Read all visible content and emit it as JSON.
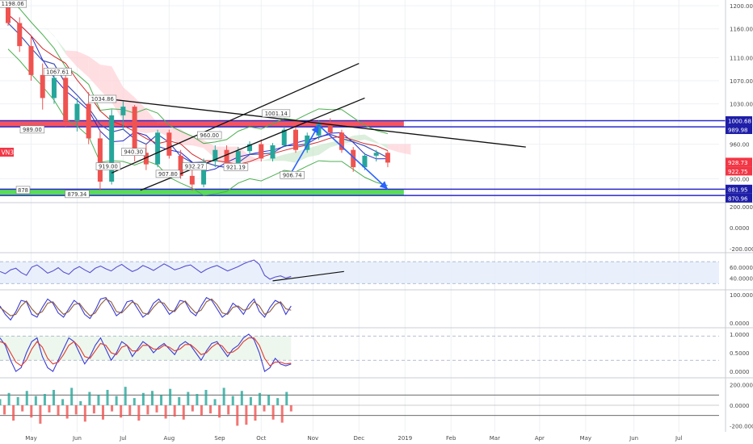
{
  "symbol": "VN30",
  "colors": {
    "grid": "#eef0f4",
    "divider": "#c9ccd3",
    "text": "#4a4a4a",
    "bull": "#26a69a",
    "bear": "#ef5350",
    "cloud_bull": "#c8e6c9",
    "cloud_bear": "#ffcdd2",
    "tenkan": "#2828c8",
    "kijun": "#d22828",
    "bb": "#4caf50",
    "sma": "#3f51b5",
    "resistance_zone": "#f23645",
    "support_zone": "#3ed43e",
    "zone_border": "#2a2ac8",
    "arrow": "#2962ff",
    "trendline": "#111111",
    "price_label": "#f23645",
    "blue_label": "#1e1ea8"
  },
  "chart_data": [
    {
      "type": "candlestick",
      "name": "price",
      "ylim": [
        860,
        1210
      ],
      "xlim": [
        0,
        63
      ],
      "y_ticks": [
        "1200.00",
        "1160.00",
        "1110.00",
        "1070.00",
        "1030.00",
        "960.00",
        "900.00"
      ],
      "x_ticks": [
        {
          "x": 2,
          "label": "May"
        },
        {
          "x": 6,
          "label": "Jun"
        },
        {
          "x": 10,
          "label": "Jul"
        },
        {
          "x": 14,
          "label": "Aug"
        },
        {
          "x": 18.4,
          "label": "Sep"
        },
        {
          "x": 22,
          "label": "Oct"
        },
        {
          "x": 26.5,
          "label": "Nov"
        },
        {
          "x": 30.5,
          "label": "Dec"
        },
        {
          "x": 34.5,
          "label": "2019"
        },
        {
          "x": 38.5,
          "label": "Feb"
        },
        {
          "x": 42.3,
          "label": "Mar"
        },
        {
          "x": 46.2,
          "label": "Apr"
        },
        {
          "x": 50.2,
          "label": "May"
        },
        {
          "x": 54.4,
          "label": "Jun"
        },
        {
          "x": 58.3,
          "label": "Jul"
        }
      ],
      "candles": [
        [
          1198,
          1205,
          1165,
          1170
        ],
        [
          1170,
          1180,
          1120,
          1130
        ],
        [
          1130,
          1148,
          1070,
          1080
        ],
        [
          1080,
          1100,
          1020,
          1040
        ],
        [
          1040,
          1085,
          1030,
          1075
        ],
        [
          1075,
          1090,
          990,
          1000
        ],
        [
          1000,
          1040,
          982,
          1030
        ],
        [
          1030,
          1050,
          960,
          970
        ],
        [
          970,
          985,
          880,
          895
        ],
        [
          895,
          1020,
          890,
          1010
        ],
        [
          1010,
          1034,
          985,
          1025
        ],
        [
          1025,
          1028,
          930,
          945
        ],
        [
          945,
          960,
          915,
          925
        ],
        [
          925,
          985,
          920,
          980
        ],
        [
          980,
          985,
          935,
          940
        ],
        [
          940,
          950,
          900,
          905
        ],
        [
          905,
          925,
          879,
          890
        ],
        [
          890,
          935,
          885,
          930
        ],
        [
          930,
          958,
          920,
          950
        ],
        [
          950,
          958,
          915,
          922
        ],
        [
          922,
          955,
          920,
          948
        ],
        [
          948,
          965,
          942,
          960
        ],
        [
          960,
          968,
          930,
          935
        ],
        [
          935,
          962,
          930,
          958
        ],
        [
          958,
          990,
          955,
          985
        ],
        [
          985,
          990,
          945,
          950
        ],
        [
          950,
          980,
          945,
          975
        ],
        [
          975,
          1001,
          968,
          995
        ],
        [
          995,
          1005,
          975,
          980
        ],
        [
          980,
          985,
          945,
          950
        ],
        [
          950,
          955,
          912,
          920
        ],
        [
          920,
          945,
          915,
          940
        ],
        [
          940,
          950,
          930,
          945
        ],
        [
          945,
          948,
          920,
          928
        ]
      ],
      "annotations": [
        {
          "i": 0.4,
          "y": 1200,
          "text": "1198.06"
        },
        {
          "i": 2.1,
          "y": 982,
          "text": "989.00"
        },
        {
          "i": 4.3,
          "y": 1082,
          "text": "1067.61"
        },
        {
          "i": 8.2,
          "y": 1035,
          "text": "1034.86"
        },
        {
          "i": 8.7,
          "y": 918,
          "text": "919.00"
        },
        {
          "i": 10.9,
          "y": 943,
          "text": "940.30"
        },
        {
          "i": 13.9,
          "y": 905,
          "text": "907.80"
        },
        {
          "i": 16.2,
          "y": 918,
          "text": "932.27"
        },
        {
          "i": 17.5,
          "y": 972,
          "text": "960.00"
        },
        {
          "i": 19.8,
          "y": 917,
          "text": "921.19"
        },
        {
          "i": 23.3,
          "y": 1010,
          "text": "1001.14"
        },
        {
          "i": 24.7,
          "y": 903,
          "text": "906.74"
        },
        {
          "i": 6.0,
          "y": 870,
          "text": "879.34"
        },
        {
          "i": 1.3,
          "y": 877,
          "text": "878"
        }
      ],
      "price_labels": [
        {
          "text": "1000.68",
          "value": 1000.68,
          "color": "blue_label"
        },
        {
          "text": "989.98",
          "value": 989.98,
          "color": "blue_label"
        },
        {
          "text": "928.73",
          "value": 928.73,
          "color": "price_label"
        },
        {
          "text": "922.75",
          "value": 922.75,
          "color": "price_label"
        },
        {
          "text": "881.95",
          "value": 881.95,
          "color": "blue_label"
        },
        {
          "text": "870.96",
          "value": 870.96,
          "color": "blue_label"
        }
      ],
      "zones": [
        {
          "name": "resistance",
          "from": 989.98,
          "to": 1000.68,
          "color": "resistance_zone"
        },
        {
          "name": "support",
          "from": 870.96,
          "to": 881.95,
          "color": "support_zone"
        }
      ],
      "trendlines": [
        {
          "x1": 8,
          "y1": 1040,
          "x2": 45,
          "y2": 955
        },
        {
          "x1": 9,
          "y1": 910,
          "x2": 30.5,
          "y2": 1100
        },
        {
          "x1": 11.5,
          "y1": 880,
          "x2": 31,
          "y2": 1040
        }
      ],
      "arrows": [
        {
          "x1": 24.6,
          "y1": 910,
          "x2": 27,
          "y2": 993
        },
        {
          "x1": 27,
          "y1": 993,
          "x2": 33,
          "y2": 882
        }
      ]
    },
    {
      "type": "line",
      "name": "macd_panel",
      "ylim": [
        -230,
        230
      ],
      "y_ticks": [
        "200.0000",
        "0.0000",
        "-200.0000"
      ]
    },
    {
      "type": "line",
      "name": "rsi",
      "ylim": [
        20,
        85
      ],
      "band": [
        30,
        70
      ],
      "y_ticks": [
        "60.0000",
        "40.0000"
      ],
      "values": [
        52,
        48,
        55,
        58,
        50,
        45,
        60,
        64,
        57,
        49,
        53,
        59,
        51,
        47,
        56,
        61,
        55,
        50,
        58,
        62,
        57,
        53,
        60,
        65,
        58,
        52,
        56,
        63,
        59,
        54,
        60,
        66,
        61,
        55,
        58,
        62,
        64,
        57,
        50,
        56,
        60,
        63,
        58,
        53,
        57,
        61,
        66,
        70,
        73,
        65,
        45,
        38,
        42,
        44,
        40,
        43
      ],
      "trendline": {
        "x1": 23,
        "y1": 35,
        "x2": 29.2,
        "y2": 52
      }
    },
    {
      "type": "line",
      "name": "stoch_a",
      "ylim": [
        -15,
        115
      ],
      "y_ticks": [
        "100.0000",
        "0.0000"
      ],
      "k": [
        60,
        30,
        10,
        40,
        80,
        75,
        30,
        20,
        55,
        85,
        70,
        35,
        20,
        50,
        80,
        65,
        30,
        15,
        45,
        85,
        90,
        60,
        25,
        40,
        75,
        80,
        50,
        20,
        35,
        70,
        85,
        60,
        30,
        45,
        80,
        75,
        40,
        25,
        60,
        90,
        80,
        50,
        20,
        35,
        70,
        55,
        30,
        65,
        85,
        40,
        20,
        55,
        80,
        70,
        30,
        60
      ],
      "d": [
        55,
        40,
        25,
        30,
        60,
        78,
        50,
        30,
        40,
        70,
        75,
        50,
        30,
        40,
        65,
        70,
        45,
        25,
        35,
        65,
        85,
        75,
        40,
        35,
        55,
        75,
        65,
        35,
        30,
        55,
        75,
        70,
        45,
        40,
        65,
        78,
        55,
        35,
        45,
        75,
        85,
        65,
        35,
        30,
        55,
        60,
        45,
        50,
        75,
        60,
        30,
        40,
        65,
        75,
        50,
        45
      ]
    },
    {
      "type": "line",
      "name": "stoch_b",
      "ylim": [
        -0.15,
        1.15
      ],
      "band": [
        0.3,
        0.95
      ],
      "y_ticks": [
        "1.0000",
        "0.5000",
        "0.0000"
      ],
      "k": [
        0.9,
        0.7,
        0.3,
        0.0,
        0.1,
        0.5,
        0.8,
        0.9,
        0.4,
        0.1,
        0.0,
        0.3,
        0.6,
        0.9,
        0.8,
        0.5,
        0.2,
        0.4,
        0.7,
        0.9,
        0.6,
        0.3,
        0.5,
        0.8,
        0.7,
        0.4,
        0.6,
        0.8,
        0.7,
        0.5,
        0.65,
        0.75,
        0.6,
        0.45,
        0.7,
        0.8,
        0.7,
        0.5,
        0.3,
        0.55,
        0.75,
        0.8,
        0.6,
        0.4,
        0.6,
        0.7,
        0.9,
        1.0,
        0.85,
        0.5,
        0.0,
        0.1,
        0.35,
        0.2,
        0.15,
        0.2
      ],
      "d": [
        0.8,
        0.75,
        0.5,
        0.25,
        0.15,
        0.3,
        0.6,
        0.8,
        0.65,
        0.35,
        0.2,
        0.25,
        0.45,
        0.7,
        0.8,
        0.65,
        0.4,
        0.35,
        0.55,
        0.75,
        0.7,
        0.5,
        0.45,
        0.65,
        0.7,
        0.55,
        0.55,
        0.7,
        0.7,
        0.6,
        0.6,
        0.7,
        0.65,
        0.55,
        0.6,
        0.72,
        0.72,
        0.6,
        0.45,
        0.5,
        0.65,
        0.75,
        0.68,
        0.5,
        0.52,
        0.62,
        0.8,
        0.9,
        0.9,
        0.7,
        0.35,
        0.15,
        0.25,
        0.25,
        0.2,
        0.22
      ]
    },
    {
      "type": "bar",
      "name": "histogram",
      "ylim": [
        -260,
        260
      ],
      "y_ticks": [
        "200.0000",
        "0.0000",
        "-200.0000"
      ],
      "levels": [
        100,
        -100
      ],
      "values": [
        60,
        -90,
        120,
        -150,
        80,
        -60,
        140,
        -120,
        90,
        -180,
        110,
        -70,
        150,
        -100,
        60,
        -130,
        170,
        -90,
        40,
        -160,
        130,
        -80,
        100,
        -140,
        150,
        -60,
        90,
        -120,
        180,
        -100,
        70,
        -150,
        120,
        -90,
        140,
        -70,
        100,
        -130,
        160,
        -110,
        80,
        -140,
        130,
        -60,
        110,
        -100,
        150,
        -80,
        60,
        -120,
        170,
        -90,
        90,
        -200,
        140,
        -190,
        80,
        -150,
        120,
        -60,
        100,
        -140,
        70,
        -170,
        130,
        -60
      ]
    }
  ]
}
